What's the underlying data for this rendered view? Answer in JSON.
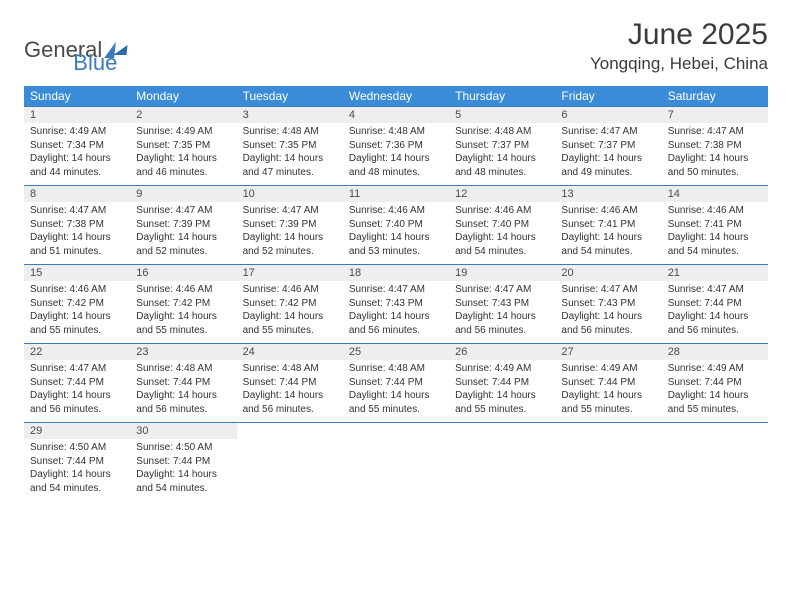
{
  "logo": {
    "part1": "General",
    "part2": "Blue"
  },
  "title": "June 2025",
  "location": "Yongqing, Hebei, China",
  "colors": {
    "header_bg": "#3a8bd8",
    "header_text": "#ffffff",
    "daynum_bg": "#eeeeee",
    "week_border": "#3a7bbf",
    "text": "#333333",
    "logo_gray": "#4a4a4a",
    "logo_blue": "#3a7bbf"
  },
  "typography": {
    "title_fontsize": 30,
    "location_fontsize": 17,
    "dow_fontsize": 12,
    "daynum_fontsize": 11,
    "detail_fontsize": 10
  },
  "days_of_week": [
    "Sunday",
    "Monday",
    "Tuesday",
    "Wednesday",
    "Thursday",
    "Friday",
    "Saturday"
  ],
  "weeks": [
    [
      {
        "n": "1",
        "sr": "Sunrise: 4:49 AM",
        "ss": "Sunset: 7:34 PM",
        "d1": "Daylight: 14 hours",
        "d2": "and 44 minutes."
      },
      {
        "n": "2",
        "sr": "Sunrise: 4:49 AM",
        "ss": "Sunset: 7:35 PM",
        "d1": "Daylight: 14 hours",
        "d2": "and 46 minutes."
      },
      {
        "n": "3",
        "sr": "Sunrise: 4:48 AM",
        "ss": "Sunset: 7:35 PM",
        "d1": "Daylight: 14 hours",
        "d2": "and 47 minutes."
      },
      {
        "n": "4",
        "sr": "Sunrise: 4:48 AM",
        "ss": "Sunset: 7:36 PM",
        "d1": "Daylight: 14 hours",
        "d2": "and 48 minutes."
      },
      {
        "n": "5",
        "sr": "Sunrise: 4:48 AM",
        "ss": "Sunset: 7:37 PM",
        "d1": "Daylight: 14 hours",
        "d2": "and 48 minutes."
      },
      {
        "n": "6",
        "sr": "Sunrise: 4:47 AM",
        "ss": "Sunset: 7:37 PM",
        "d1": "Daylight: 14 hours",
        "d2": "and 49 minutes."
      },
      {
        "n": "7",
        "sr": "Sunrise: 4:47 AM",
        "ss": "Sunset: 7:38 PM",
        "d1": "Daylight: 14 hours",
        "d2": "and 50 minutes."
      }
    ],
    [
      {
        "n": "8",
        "sr": "Sunrise: 4:47 AM",
        "ss": "Sunset: 7:38 PM",
        "d1": "Daylight: 14 hours",
        "d2": "and 51 minutes."
      },
      {
        "n": "9",
        "sr": "Sunrise: 4:47 AM",
        "ss": "Sunset: 7:39 PM",
        "d1": "Daylight: 14 hours",
        "d2": "and 52 minutes."
      },
      {
        "n": "10",
        "sr": "Sunrise: 4:47 AM",
        "ss": "Sunset: 7:39 PM",
        "d1": "Daylight: 14 hours",
        "d2": "and 52 minutes."
      },
      {
        "n": "11",
        "sr": "Sunrise: 4:46 AM",
        "ss": "Sunset: 7:40 PM",
        "d1": "Daylight: 14 hours",
        "d2": "and 53 minutes."
      },
      {
        "n": "12",
        "sr": "Sunrise: 4:46 AM",
        "ss": "Sunset: 7:40 PM",
        "d1": "Daylight: 14 hours",
        "d2": "and 54 minutes."
      },
      {
        "n": "13",
        "sr": "Sunrise: 4:46 AM",
        "ss": "Sunset: 7:41 PM",
        "d1": "Daylight: 14 hours",
        "d2": "and 54 minutes."
      },
      {
        "n": "14",
        "sr": "Sunrise: 4:46 AM",
        "ss": "Sunset: 7:41 PM",
        "d1": "Daylight: 14 hours",
        "d2": "and 54 minutes."
      }
    ],
    [
      {
        "n": "15",
        "sr": "Sunrise: 4:46 AM",
        "ss": "Sunset: 7:42 PM",
        "d1": "Daylight: 14 hours",
        "d2": "and 55 minutes."
      },
      {
        "n": "16",
        "sr": "Sunrise: 4:46 AM",
        "ss": "Sunset: 7:42 PM",
        "d1": "Daylight: 14 hours",
        "d2": "and 55 minutes."
      },
      {
        "n": "17",
        "sr": "Sunrise: 4:46 AM",
        "ss": "Sunset: 7:42 PM",
        "d1": "Daylight: 14 hours",
        "d2": "and 55 minutes."
      },
      {
        "n": "18",
        "sr": "Sunrise: 4:47 AM",
        "ss": "Sunset: 7:43 PM",
        "d1": "Daylight: 14 hours",
        "d2": "and 56 minutes."
      },
      {
        "n": "19",
        "sr": "Sunrise: 4:47 AM",
        "ss": "Sunset: 7:43 PM",
        "d1": "Daylight: 14 hours",
        "d2": "and 56 minutes."
      },
      {
        "n": "20",
        "sr": "Sunrise: 4:47 AM",
        "ss": "Sunset: 7:43 PM",
        "d1": "Daylight: 14 hours",
        "d2": "and 56 minutes."
      },
      {
        "n": "21",
        "sr": "Sunrise: 4:47 AM",
        "ss": "Sunset: 7:44 PM",
        "d1": "Daylight: 14 hours",
        "d2": "and 56 minutes."
      }
    ],
    [
      {
        "n": "22",
        "sr": "Sunrise: 4:47 AM",
        "ss": "Sunset: 7:44 PM",
        "d1": "Daylight: 14 hours",
        "d2": "and 56 minutes."
      },
      {
        "n": "23",
        "sr": "Sunrise: 4:48 AM",
        "ss": "Sunset: 7:44 PM",
        "d1": "Daylight: 14 hours",
        "d2": "and 56 minutes."
      },
      {
        "n": "24",
        "sr": "Sunrise: 4:48 AM",
        "ss": "Sunset: 7:44 PM",
        "d1": "Daylight: 14 hours",
        "d2": "and 56 minutes."
      },
      {
        "n": "25",
        "sr": "Sunrise: 4:48 AM",
        "ss": "Sunset: 7:44 PM",
        "d1": "Daylight: 14 hours",
        "d2": "and 55 minutes."
      },
      {
        "n": "26",
        "sr": "Sunrise: 4:49 AM",
        "ss": "Sunset: 7:44 PM",
        "d1": "Daylight: 14 hours",
        "d2": "and 55 minutes."
      },
      {
        "n": "27",
        "sr": "Sunrise: 4:49 AM",
        "ss": "Sunset: 7:44 PM",
        "d1": "Daylight: 14 hours",
        "d2": "and 55 minutes."
      },
      {
        "n": "28",
        "sr": "Sunrise: 4:49 AM",
        "ss": "Sunset: 7:44 PM",
        "d1": "Daylight: 14 hours",
        "d2": "and 55 minutes."
      }
    ],
    [
      {
        "n": "29",
        "sr": "Sunrise: 4:50 AM",
        "ss": "Sunset: 7:44 PM",
        "d1": "Daylight: 14 hours",
        "d2": "and 54 minutes."
      },
      {
        "n": "30",
        "sr": "Sunrise: 4:50 AM",
        "ss": "Sunset: 7:44 PM",
        "d1": "Daylight: 14 hours",
        "d2": "and 54 minutes."
      },
      null,
      null,
      null,
      null,
      null
    ]
  ]
}
